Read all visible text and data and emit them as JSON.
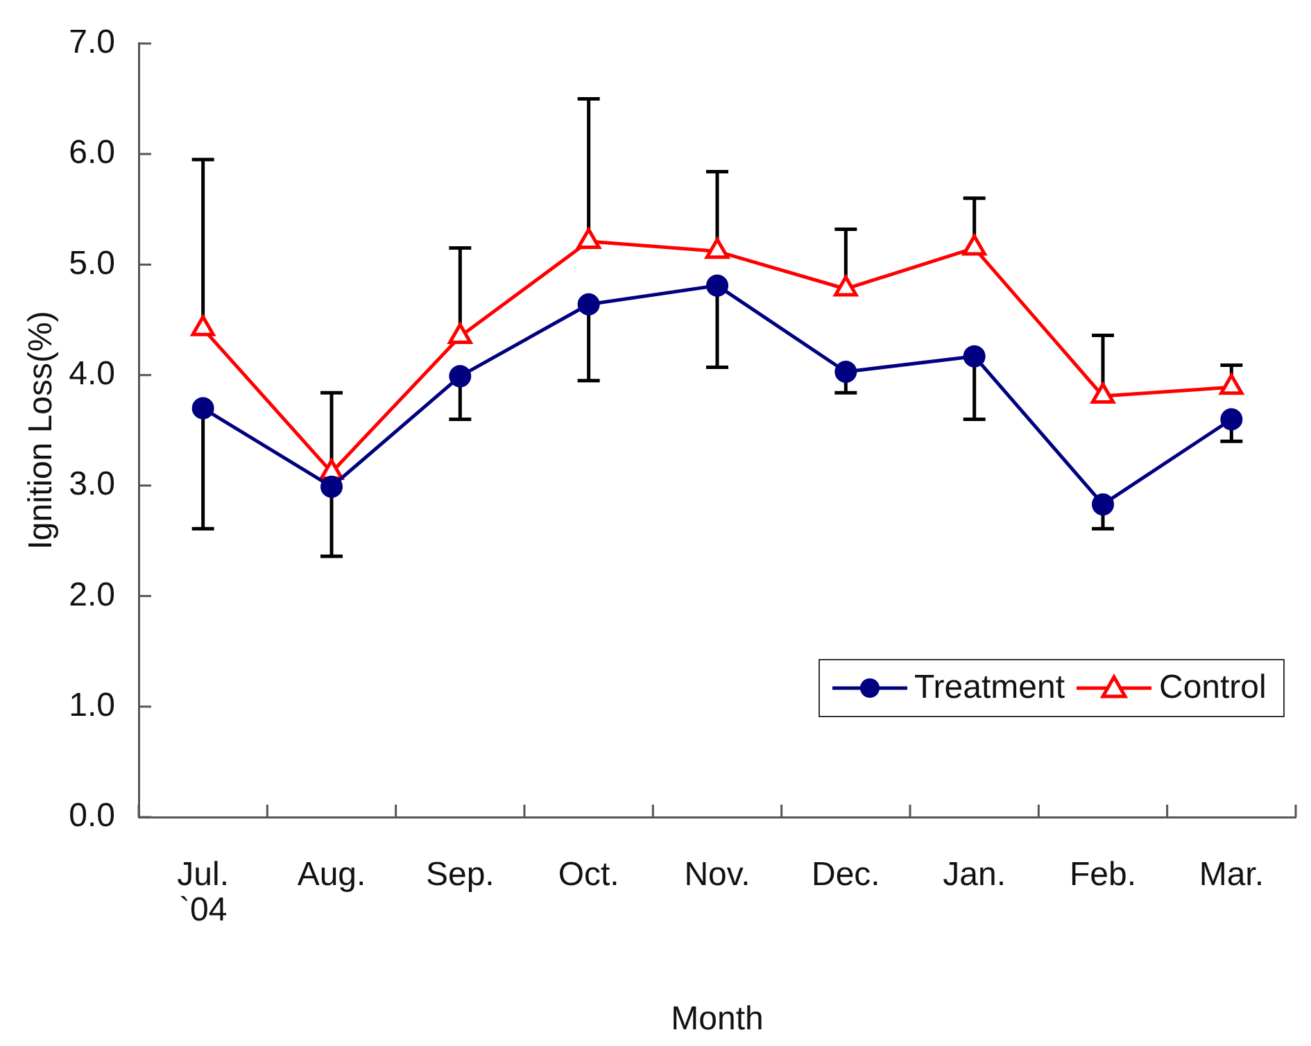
{
  "chart_data": {
    "type": "line",
    "xlabel": "Month",
    "ylabel": "Ignition Loss(%)",
    "categories": [
      "Jul.\n`04",
      "Aug.",
      "Sep.",
      "Oct.",
      "Nov.",
      "Dec.",
      "Jan.",
      "Feb.",
      "Mar."
    ],
    "series": [
      {
        "name": "Treatment",
        "color": "#000080",
        "marker": "circle",
        "values": [
          3.7,
          2.99,
          3.99,
          4.64,
          4.81,
          4.03,
          4.17,
          2.83,
          3.6
        ],
        "errors": [
          [
            2.61,
            3.7
          ],
          [
            2.36,
            2.99
          ],
          [
            3.6,
            3.99
          ],
          [
            3.95,
            4.64
          ],
          [
            4.07,
            4.81
          ],
          [
            3.84,
            4.03
          ],
          [
            3.6,
            4.17
          ],
          [
            2.61,
            2.83
          ],
          [
            3.4,
            3.6
          ]
        ]
      },
      {
        "name": "Control",
        "color": "#ff0000",
        "marker": "triangle",
        "values": [
          4.42,
          3.12,
          4.35,
          5.21,
          5.12,
          4.78,
          5.15,
          3.81,
          3.89
        ],
        "errors": [
          [
            4.42,
            5.95
          ],
          [
            3.12,
            3.84
          ],
          [
            4.35,
            5.15
          ],
          [
            5.21,
            6.5
          ],
          [
            5.12,
            5.84
          ],
          [
            4.78,
            5.32
          ],
          [
            5.15,
            5.6
          ],
          [
            3.81,
            4.36
          ],
          [
            3.89,
            4.09
          ]
        ]
      }
    ],
    "ylim": [
      0,
      7
    ],
    "yticks": [
      {
        "value": 0,
        "label": "0.0"
      },
      {
        "value": 1,
        "label": "1.0"
      },
      {
        "value": 2,
        "label": "2.0"
      },
      {
        "value": 3,
        "label": "3.0"
      },
      {
        "value": 4,
        "label": "4.0"
      },
      {
        "value": 5,
        "label": "5.0"
      },
      {
        "value": 6,
        "label": "6.0"
      },
      {
        "value": 7,
        "label": "7.0"
      }
    ],
    "legend": "bottom right"
  }
}
